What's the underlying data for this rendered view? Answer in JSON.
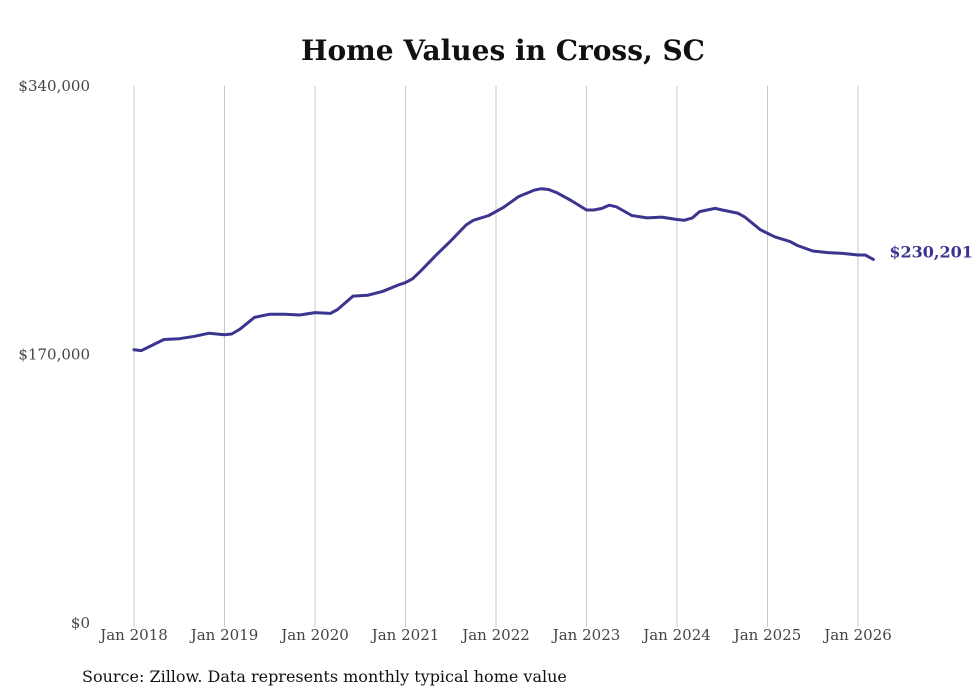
{
  "chart_data": {
    "type": "line",
    "title": "Home Values in Cross, SC",
    "xlabel": "",
    "ylabel": "",
    "ylim": [
      0,
      340000
    ],
    "y_ticks": [
      {
        "value": 0,
        "label": "$0"
      },
      {
        "value": 170000,
        "label": "$170,000"
      },
      {
        "value": 340000,
        "label": "$340,000"
      }
    ],
    "x_range": [
      2018.0,
      2026.17
    ],
    "x_ticks": [
      {
        "value": 2018,
        "label": "Jan 2018"
      },
      {
        "value": 2019,
        "label": "Jan 2019"
      },
      {
        "value": 2020,
        "label": "Jan 2020"
      },
      {
        "value": 2021,
        "label": "Jan 2021"
      },
      {
        "value": 2022,
        "label": "Jan 2022"
      },
      {
        "value": 2023,
        "label": "Jan 2023"
      },
      {
        "value": 2024,
        "label": "Jan 2024"
      },
      {
        "value": 2025,
        "label": "Jan 2025"
      },
      {
        "value": 2026,
        "label": "Jan 2026"
      }
    ],
    "vertical_grid": true,
    "series": [
      {
        "color": "#3b3590",
        "end_label": "$230,201",
        "points": [
          [
            2018.0,
            173000
          ],
          [
            2018.08,
            172500
          ],
          [
            2018.17,
            175000
          ],
          [
            2018.33,
            179500
          ],
          [
            2018.5,
            180000
          ],
          [
            2018.67,
            181500
          ],
          [
            2018.83,
            183500
          ],
          [
            2019.0,
            182500
          ],
          [
            2019.08,
            183000
          ],
          [
            2019.17,
            186000
          ],
          [
            2019.33,
            193500
          ],
          [
            2019.5,
            195500
          ],
          [
            2019.67,
            195500
          ],
          [
            2019.83,
            195000
          ],
          [
            2020.0,
            196500
          ],
          [
            2020.17,
            196000
          ],
          [
            2020.25,
            198500
          ],
          [
            2020.42,
            207000
          ],
          [
            2020.58,
            207500
          ],
          [
            2020.75,
            210000
          ],
          [
            2020.92,
            214000
          ],
          [
            2021.0,
            215500
          ],
          [
            2021.08,
            218000
          ],
          [
            2021.17,
            223000
          ],
          [
            2021.33,
            232500
          ],
          [
            2021.5,
            242000
          ],
          [
            2021.67,
            252000
          ],
          [
            2021.75,
            255000
          ],
          [
            2021.92,
            258000
          ],
          [
            2022.08,
            263000
          ],
          [
            2022.25,
            270000
          ],
          [
            2022.42,
            274000
          ],
          [
            2022.5,
            275000
          ],
          [
            2022.58,
            274500
          ],
          [
            2022.67,
            272500
          ],
          [
            2022.83,
            267500
          ],
          [
            2023.0,
            261500
          ],
          [
            2023.08,
            261500
          ],
          [
            2023.17,
            262500
          ],
          [
            2023.25,
            264500
          ],
          [
            2023.33,
            263500
          ],
          [
            2023.5,
            258000
          ],
          [
            2023.67,
            256500
          ],
          [
            2023.83,
            257000
          ],
          [
            2024.0,
            255500
          ],
          [
            2024.08,
            255000
          ],
          [
            2024.17,
            256500
          ],
          [
            2024.25,
            260500
          ],
          [
            2024.42,
            262500
          ],
          [
            2024.5,
            261500
          ],
          [
            2024.67,
            259500
          ],
          [
            2024.75,
            257000
          ],
          [
            2024.92,
            249000
          ],
          [
            2025.08,
            244500
          ],
          [
            2025.25,
            241500
          ],
          [
            2025.33,
            239000
          ],
          [
            2025.5,
            235500
          ],
          [
            2025.67,
            234500
          ],
          [
            2025.83,
            234000
          ],
          [
            2026.0,
            233000
          ],
          [
            2026.08,
            233000
          ],
          [
            2026.17,
            230201
          ]
        ]
      }
    ],
    "source": "Source: Zillow. Data represents monthly typical home value"
  }
}
